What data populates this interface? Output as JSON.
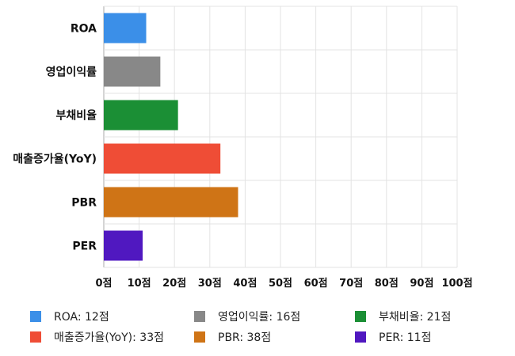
{
  "chart_data": {
    "type": "bar",
    "orientation": "horizontal",
    "categories": [
      "ROA",
      "영업이익률",
      "부채비율",
      "매출증가율(YoY)",
      "PBR",
      "PER"
    ],
    "values": [
      12,
      16,
      21,
      33,
      38,
      11
    ],
    "colors": [
      "#3b8fe8",
      "#888888",
      "#1b8f35",
      "#ef4d36",
      "#cf7416",
      "#5018c0"
    ],
    "xlim": [
      0,
      100
    ],
    "xticks": [
      0,
      10,
      20,
      30,
      40,
      50,
      60,
      70,
      80,
      90,
      100
    ],
    "tick_suffix": "점",
    "grid": true,
    "legend_position": "bottom",
    "legend": [
      {
        "label": "ROA: 12점",
        "color": "#3b8fe8"
      },
      {
        "label": "영업이익률: 16점",
        "color": "#888888"
      },
      {
        "label": "부채비율: 21점",
        "color": "#1b8f35"
      },
      {
        "label": "매출증가율(YoY): 33점",
        "color": "#ef4d36"
      },
      {
        "label": "PBR: 38점",
        "color": "#cf7416"
      },
      {
        "label": "PER: 11점",
        "color": "#5018c0"
      }
    ]
  }
}
